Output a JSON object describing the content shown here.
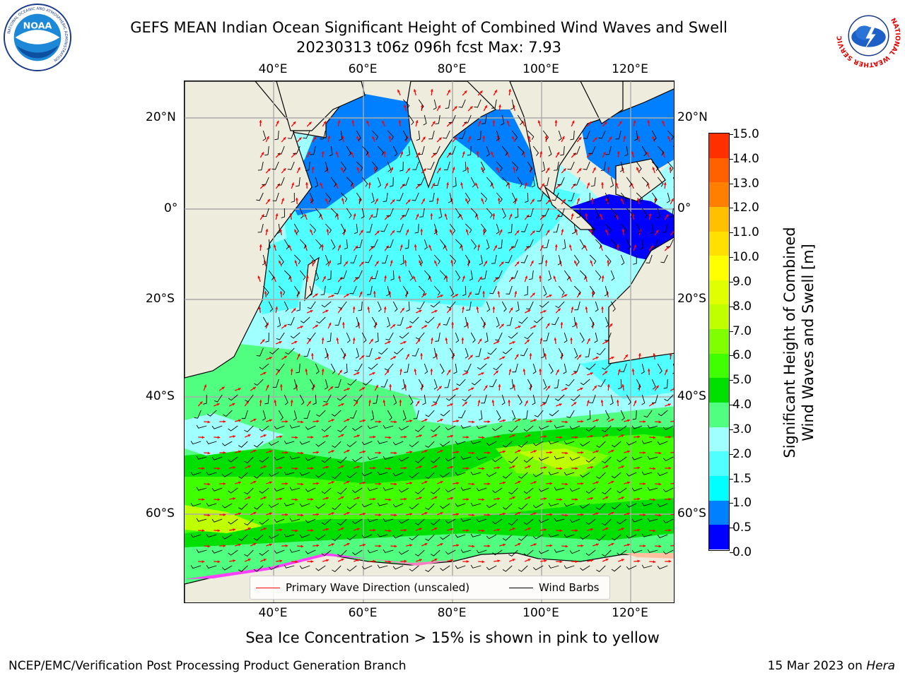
{
  "title_line1": "GEFS MEAN Indian Ocean Significant Height of Combined Wind Waves and Swell",
  "title_line2": "20230313 t06z 096h fcst   Max: 7.93",
  "logos": {
    "left_icon": "noaa-logo-icon",
    "left_text": "NOAA",
    "left_ring_text": "NATIONAL OCEANIC AND ATMOSPHERIC ADMINISTRATION · U.S. DEPARTMENT OF COMMERCE",
    "right_icon": "nws-logo-icon",
    "right_ring_text": "NATIONAL WEATHER SERVICE"
  },
  "map": {
    "lon_labels": [
      "40°E",
      "60°E",
      "80°E",
      "100°E",
      "120°E"
    ],
    "lat_labels": [
      "20°N",
      "0°",
      "20°S",
      "40°S",
      "60°S"
    ],
    "colors": {
      "land": "#eeecdd",
      "gridline": "#aaaaaa",
      "wave_arrow": "#ff0000",
      "wind_barb": "#000000"
    }
  },
  "legend": {
    "wave_label": "Primary Wave Direction (unscaled)",
    "wind_label": "Wind Barbs"
  },
  "colorbar": {
    "label_line1": "Significant Height of Combined",
    "label_line2": "Wind Waves and Swell [m]",
    "ticks": [
      "0.0",
      "0.5",
      "1.0",
      "1.5",
      "2.0",
      "3.0",
      "4.0",
      "5.0",
      "6.0",
      "7.0",
      "8.0",
      "9.0",
      "10.0",
      "11.0",
      "12.0",
      "13.0",
      "14.0",
      "15.0"
    ],
    "colors": [
      "#0000ff",
      "#0080ff",
      "#00ffff",
      "#50ffff",
      "#a0ffff",
      "#50ff80",
      "#00e000",
      "#40ff00",
      "#80ff00",
      "#c0ff00",
      "#e0ff00",
      "#ffff00",
      "#ffe000",
      "#ffc000",
      "#ff8000",
      "#ff6000",
      "#ff3000"
    ]
  },
  "chart_data": {
    "type": "heatmap",
    "field": "Significant Height of Combined Wind Waves and Swell",
    "units": "m",
    "max_value": 7.93,
    "lon_range_deg_E": [
      20,
      130
    ],
    "lat_range_deg": [
      -72,
      26
    ],
    "scale": [
      0.0,
      0.5,
      1.0,
      1.5,
      2.0,
      3.0,
      4.0,
      5.0,
      6.0,
      7.0,
      8.0,
      9.0,
      10.0,
      11.0,
      12.0,
      13.0,
      14.0,
      15.0
    ],
    "overlays": [
      "Primary Wave Direction (unscaled)",
      "Wind Barbs"
    ]
  },
  "ice_note": "Sea Ice Concentration > 15% is shown in pink to yellow",
  "credit_left": "NCEP/EMC/Verification Post Processing Product Generation Branch",
  "credit_date": "15 Mar 2023 on ",
  "credit_machine": "Hera"
}
